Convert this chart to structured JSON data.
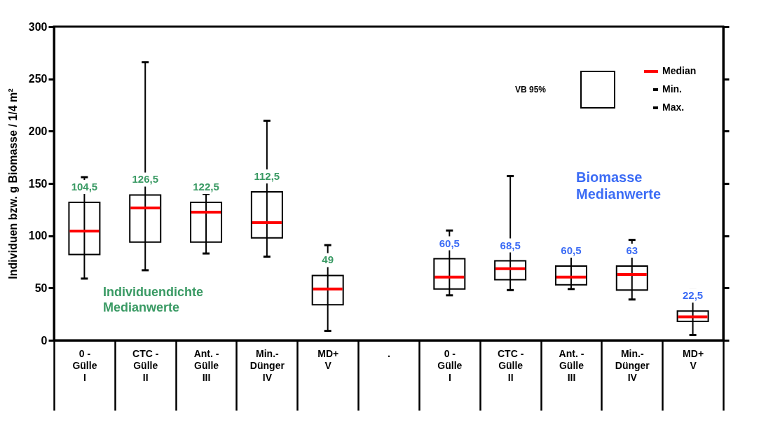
{
  "chart_data": {
    "type": "box",
    "ylabel": "Individuen bzw. g Biomasse / 1/4 m²",
    "categories": [
      "0  -\nGülle\n\nI",
      "CTC -\nGülle\n\nII",
      "Ant. -\nGülle\n\nIII",
      "Min.-\nDünger\n\nIV",
      "MD+\n\n\nV",
      ".",
      "0  -\nGülle\n\nI",
      "CTC -\nGülle\n\nII",
      "Ant. -\nGülle\n\nIII",
      "Min.-\nDünger\n\nIV",
      "MD+\n\n\nV"
    ],
    "boxes": [
      {
        "low": 59,
        "q1": 82,
        "median": 104.5,
        "q3": 132,
        "high": 156
      },
      {
        "low": 67,
        "q1": 94,
        "median": 126.5,
        "q3": 139,
        "high": 266
      },
      {
        "low": 83,
        "q1": 94,
        "median": 122.5,
        "q3": 132,
        "high": 140
      },
      {
        "low": 80,
        "q1": 98,
        "median": 112.5,
        "q3": 142,
        "high": 210
      },
      {
        "low": 9,
        "q1": 34,
        "median": 49,
        "q3": 62,
        "high": 91
      },
      null,
      {
        "low": 43,
        "q1": 49,
        "median": 60.5,
        "q3": 78,
        "high": 105
      },
      {
        "low": 48,
        "q1": 58,
        "median": 68.5,
        "q3": 76,
        "high": 157
      },
      {
        "low": 49,
        "q1": 53,
        "median": 60.5,
        "q3": 71,
        "high": 81
      },
      {
        "low": 39,
        "q1": 48,
        "median": 63,
        "q3": 71,
        "high": 96
      },
      {
        "low": 5,
        "q1": 18,
        "median": 22.5,
        "q3": 28,
        "high": 48
      }
    ],
    "value_labels": [
      "104,5",
      "126,5",
      "122,5",
      "112,5",
      "49",
      null,
      "60,5",
      "68,5",
      "60,5",
      "63",
      "22,5"
    ],
    "ylim": [
      0,
      300
    ],
    "yticks": [
      0,
      50,
      100,
      150,
      200,
      250,
      300
    ],
    "grid": false,
    "annotations": [
      "VB 95%",
      "Median",
      "Min.",
      "Max.",
      "Individuendichte\nMedianwerte",
      "Biomasse\nMedianwerte"
    ]
  }
}
